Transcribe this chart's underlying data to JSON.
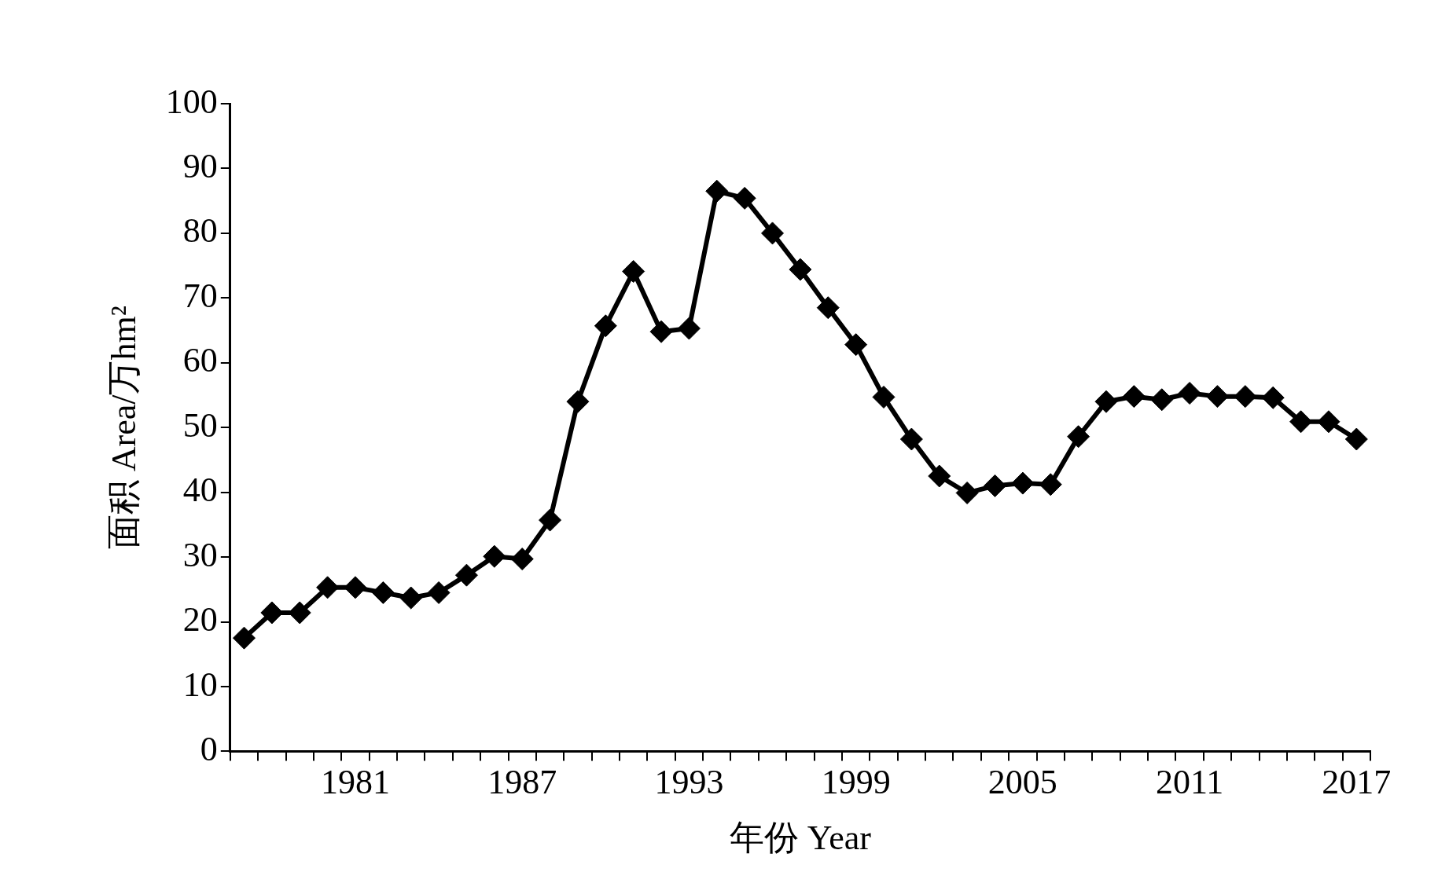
{
  "chart_data": {
    "type": "line",
    "xlabel": "年份 Year",
    "ylabel": "面积 Area/万hm²",
    "categories": [
      null,
      null,
      null,
      null,
      "1981",
      null,
      null,
      null,
      null,
      null,
      "1987",
      null,
      null,
      null,
      null,
      null,
      "1993",
      null,
      null,
      null,
      null,
      null,
      "1999",
      null,
      null,
      null,
      null,
      null,
      "2005",
      null,
      null,
      null,
      null,
      null,
      "2011",
      null,
      null,
      null,
      null,
      null,
      "2017"
    ],
    "series": [
      {
        "color": "#000000",
        "values": [
          17.5,
          21.4,
          21.4,
          25.3,
          25.3,
          24.5,
          23.7,
          24.5,
          27.2,
          30.1,
          29.7,
          35.7,
          54.0,
          65.7,
          74.1,
          64.8,
          65.3,
          86.5,
          85.4,
          80.0,
          74.4,
          68.5,
          62.8,
          54.7,
          48.2,
          42.5,
          39.9,
          41.0,
          41.4,
          41.2,
          48.6,
          54.0,
          54.8,
          54.3,
          55.3,
          54.8,
          54.8,
          54.6,
          50.9,
          50.9,
          48.2
        ]
      }
    ],
    "ylim": [
      0,
      100
    ],
    "yticks": [
      0,
      10,
      20,
      30,
      40,
      50,
      60,
      70,
      80,
      90,
      100
    ],
    "grid": false,
    "legend": false,
    "marker": "diamond",
    "line_style": "solid"
  }
}
